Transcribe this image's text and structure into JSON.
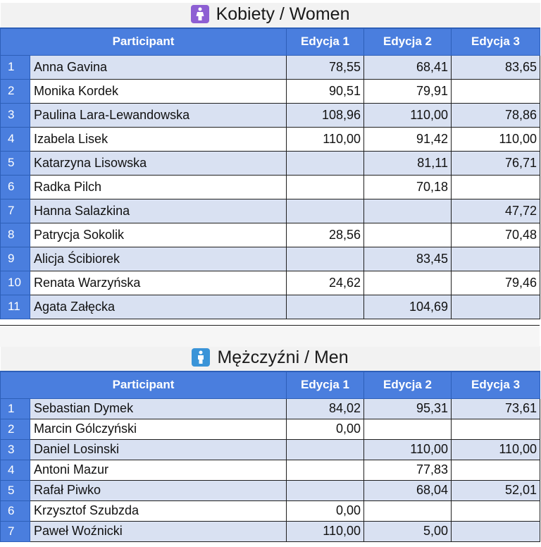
{
  "women": {
    "title": "Kobiety / Women",
    "icon": "woman-icon",
    "headers": [
      "Participant",
      "Edycja 1",
      "Edycja 2",
      "Edycja 3"
    ],
    "rows": [
      {
        "n": "1",
        "name": "Anna Gavina",
        "e1": "78,55",
        "e2": "68,41",
        "e3": "83,65"
      },
      {
        "n": "2",
        "name": "Monika Kordek",
        "e1": "90,51",
        "e2": "79,91",
        "e3": ""
      },
      {
        "n": "3",
        "name": "Paulina Lara-Lewandowska",
        "e1": "108,96",
        "e2": "110,00",
        "e3": "78,86"
      },
      {
        "n": "4",
        "name": "Izabela Lisek",
        "e1": "110,00",
        "e2": "91,42",
        "e3": "110,00"
      },
      {
        "n": "5",
        "name": "Katarzyna Lisowska",
        "e1": "",
        "e2": "81,11",
        "e3": "76,71"
      },
      {
        "n": "6",
        "name": "Radka Pilch",
        "e1": "",
        "e2": "70,18",
        "e3": ""
      },
      {
        "n": "7",
        "name": "Hanna Salazkina",
        "e1": "",
        "e2": "",
        "e3": "47,72"
      },
      {
        "n": "8",
        "name": "Patrycja Sokolik",
        "e1": "28,56",
        "e2": "",
        "e3": "70,48"
      },
      {
        "n": "9",
        "name": "Alicja Ścibiorek",
        "e1": "",
        "e2": "83,45",
        "e3": ""
      },
      {
        "n": "10",
        "name": "Renata Warzyńska",
        "e1": "24,62",
        "e2": "",
        "e3": "79,46"
      },
      {
        "n": "11",
        "name": "Agata Załęcka",
        "e1": "",
        "e2": "104,69",
        "e3": ""
      }
    ]
  },
  "men": {
    "title": "Mężczyźni / Men",
    "icon": "man-icon",
    "headers": [
      "Participant",
      "Edycja 1",
      "Edycja 2",
      "Edycja 3"
    ],
    "rows": [
      {
        "n": "1",
        "name": "Sebastian Dymek",
        "e1": "84,02",
        "e2": "95,31",
        "e3": "73,61"
      },
      {
        "n": "2",
        "name": "Marcin Gólczyński",
        "e1": "0,00",
        "e2": "",
        "e3": ""
      },
      {
        "n": "3",
        "name": "Daniel Losinski",
        "e1": "",
        "e2": "110,00",
        "e3": "110,00"
      },
      {
        "n": "4",
        "name": "Antoni Mazur",
        "e1": "",
        "e2": "77,83",
        "e3": ""
      },
      {
        "n": "5",
        "name": "Rafał Piwko",
        "e1": "",
        "e2": "68,04",
        "e3": "52,01"
      },
      {
        "n": "6",
        "name": "Krzysztof Szubzda",
        "e1": "0,00",
        "e2": "",
        "e3": ""
      },
      {
        "n": "7",
        "name": "Paweł Woźnicki",
        "e1": "110,00",
        "e2": "5,00",
        "e3": ""
      }
    ]
  },
  "colors": {
    "header_blue": "#4a7ede",
    "row_stripe": "#d9e1f2",
    "women_icon": "#8d5fd3",
    "men_icon": "#3a94d8"
  }
}
